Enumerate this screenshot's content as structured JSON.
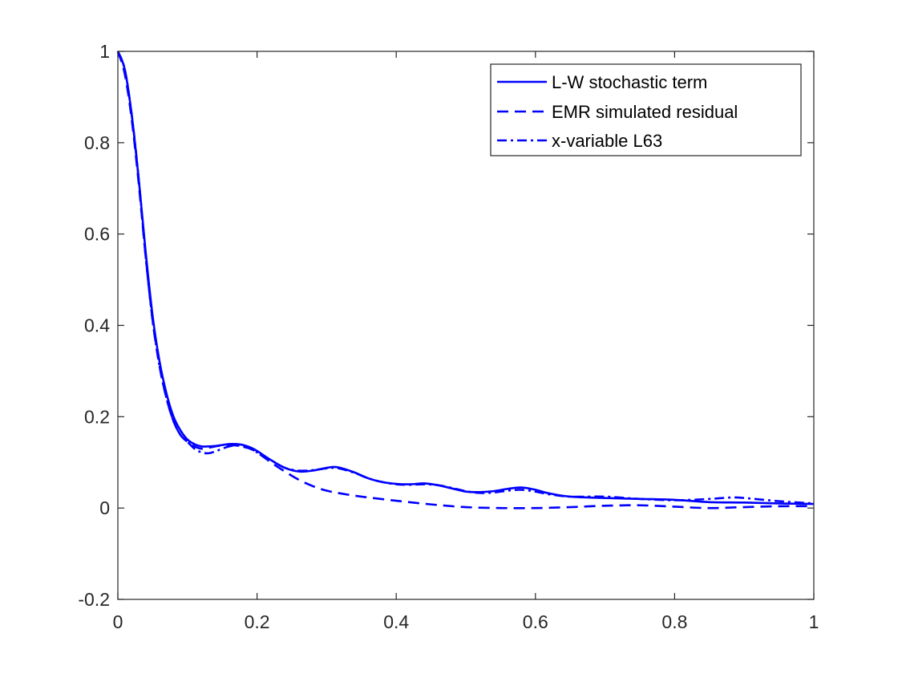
{
  "chart_data": {
    "type": "line",
    "title": "",
    "xlabel": "",
    "ylabel": "",
    "xlim": [
      0,
      1
    ],
    "ylim": [
      -0.2,
      1
    ],
    "x_ticks": [
      0,
      0.2,
      0.4,
      0.6,
      0.8,
      1
    ],
    "x_tick_labels": [
      "0",
      "0.2",
      "0.4",
      "0.6",
      "0.8",
      "1"
    ],
    "y_ticks": [
      -0.2,
      0,
      0.2,
      0.4,
      0.6,
      0.8,
      1
    ],
    "y_tick_labels": [
      "-0.2",
      "0",
      "0.2",
      "0.4",
      "0.6",
      "0.8",
      "1"
    ],
    "grid": false,
    "legend_position": "top-right",
    "line_color": "#0000ff",
    "series": [
      {
        "name": "L-W stochastic term",
        "style": "solid",
        "x": [
          0,
          0.01,
          0.02,
          0.03,
          0.04,
          0.05,
          0.06,
          0.07,
          0.08,
          0.09,
          0.1,
          0.11,
          0.12,
          0.13,
          0.14,
          0.15,
          0.16,
          0.17,
          0.18,
          0.19,
          0.2,
          0.22,
          0.24,
          0.26,
          0.28,
          0.3,
          0.31,
          0.32,
          0.34,
          0.36,
          0.38,
          0.4,
          0.42,
          0.44,
          0.46,
          0.48,
          0.5,
          0.52,
          0.54,
          0.56,
          0.58,
          0.6,
          0.62,
          0.65,
          0.7,
          0.75,
          0.8,
          0.85,
          0.9,
          0.95,
          1.0
        ],
        "y": [
          1.0,
          0.96,
          0.86,
          0.72,
          0.56,
          0.42,
          0.32,
          0.25,
          0.2,
          0.17,
          0.15,
          0.14,
          0.135,
          0.135,
          0.136,
          0.138,
          0.14,
          0.14,
          0.138,
          0.133,
          0.125,
          0.105,
          0.088,
          0.08,
          0.082,
          0.088,
          0.09,
          0.088,
          0.078,
          0.065,
          0.057,
          0.053,
          0.052,
          0.054,
          0.05,
          0.043,
          0.036,
          0.035,
          0.037,
          0.042,
          0.045,
          0.04,
          0.032,
          0.025,
          0.022,
          0.02,
          0.018,
          0.013,
          0.012,
          0.01,
          0.009
        ]
      },
      {
        "name": "EMR simulated residual",
        "style": "dashed",
        "x": [
          0,
          0.01,
          0.02,
          0.03,
          0.04,
          0.05,
          0.06,
          0.07,
          0.08,
          0.09,
          0.1,
          0.11,
          0.12,
          0.13,
          0.14,
          0.15,
          0.16,
          0.17,
          0.18,
          0.19,
          0.2,
          0.22,
          0.24,
          0.26,
          0.28,
          0.3,
          0.32,
          0.35,
          0.4,
          0.45,
          0.5,
          0.55,
          0.6,
          0.65,
          0.7,
          0.75,
          0.8,
          0.85,
          0.9,
          0.95,
          1.0
        ],
        "y": [
          1.0,
          0.95,
          0.85,
          0.71,
          0.55,
          0.41,
          0.31,
          0.24,
          0.19,
          0.16,
          0.145,
          0.135,
          0.13,
          0.132,
          0.135,
          0.137,
          0.138,
          0.137,
          0.134,
          0.13,
          0.122,
          0.1,
          0.08,
          0.062,
          0.048,
          0.038,
          0.032,
          0.025,
          0.016,
          0.008,
          0.002,
          0.0,
          0.0,
          0.002,
          0.005,
          0.006,
          0.003,
          0.0,
          0.002,
          0.004,
          0.004
        ]
      },
      {
        "name": "x-variable L63",
        "style": "dashdot",
        "x": [
          0,
          0.01,
          0.02,
          0.03,
          0.04,
          0.05,
          0.06,
          0.07,
          0.08,
          0.09,
          0.1,
          0.11,
          0.12,
          0.13,
          0.14,
          0.15,
          0.16,
          0.17,
          0.18,
          0.19,
          0.2,
          0.22,
          0.24,
          0.26,
          0.28,
          0.3,
          0.31,
          0.32,
          0.34,
          0.36,
          0.38,
          0.4,
          0.42,
          0.44,
          0.46,
          0.48,
          0.5,
          0.52,
          0.54,
          0.56,
          0.58,
          0.6,
          0.62,
          0.65,
          0.7,
          0.75,
          0.8,
          0.85,
          0.88,
          0.9,
          0.95,
          1.0
        ],
        "y": [
          1.0,
          0.96,
          0.86,
          0.72,
          0.55,
          0.41,
          0.31,
          0.24,
          0.19,
          0.16,
          0.145,
          0.13,
          0.122,
          0.12,
          0.124,
          0.13,
          0.135,
          0.137,
          0.135,
          0.13,
          0.122,
          0.105,
          0.088,
          0.082,
          0.083,
          0.087,
          0.088,
          0.086,
          0.077,
          0.065,
          0.057,
          0.052,
          0.051,
          0.052,
          0.05,
          0.044,
          0.037,
          0.033,
          0.034,
          0.038,
          0.04,
          0.036,
          0.03,
          0.025,
          0.025,
          0.02,
          0.017,
          0.02,
          0.023,
          0.022,
          0.015,
          0.01
        ]
      }
    ]
  }
}
